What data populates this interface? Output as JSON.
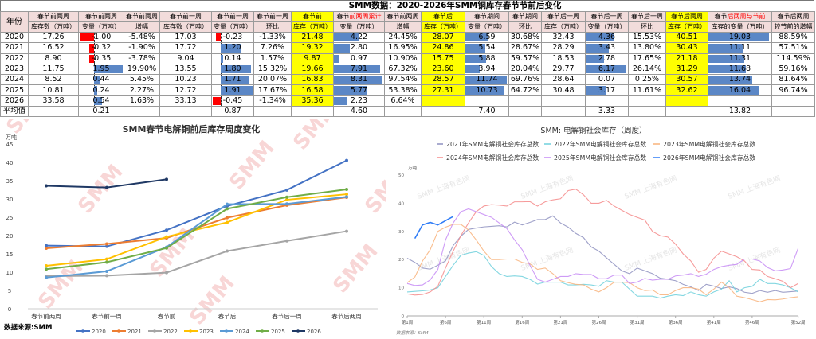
{
  "title": "SMM数据：2020-2026年SMM铜库存春节节前后变化",
  "table": {
    "year_header": "年份",
    "headers_top": [
      {
        "a": "春节前两周"
      },
      {
        "a": "春节前两周"
      },
      {
        "a": "春节前两周"
      },
      {
        "a": "春节前一周"
      },
      {
        "a": "春节前一周"
      },
      {
        "a": "春节前一周"
      },
      {
        "a": "春节前"
      },
      {
        "a": "春节",
        "b": "前两周累计"
      },
      {
        "a": "春节前两周"
      },
      {
        "a": "春节后"
      },
      {
        "a": "春节期间"
      },
      {
        "a": "春节期间"
      },
      {
        "a": "春节后一周"
      },
      {
        "a": "春节后一周"
      },
      {
        "a": "春节后一周"
      },
      {
        "a": "春节后两周"
      },
      {
        "a": "春节",
        "b": "后两周与节前"
      },
      {
        "a": "春节后两周"
      }
    ],
    "headers_bottom": [
      "库存数（万吨）",
      "变量（万吨）",
      "增幅",
      "库存数（万吨）",
      "变量（万吨）",
      "环比",
      "库存（万吨）",
      "变量（万吨）",
      "增幅",
      "库存（万吨）",
      "变量（万吨）",
      "环比",
      "库存（万吨）",
      "变量（万吨）",
      "环比",
      "库存（万吨）",
      "库存的变量（万吨）",
      "较节前的增幅"
    ],
    "rows": [
      [
        "2020",
        "17.26",
        "-1.00",
        "-5.48%",
        "17.03",
        "-0.23",
        "-1.33%",
        "21.48",
        "4.22",
        "24.45%",
        "28.07",
        "6.59",
        "30.68%",
        "32.43",
        "4.36",
        "15.53%",
        "40.51",
        "19.03",
        "88.59%"
      ],
      [
        "2021",
        "16.52",
        "-0.32",
        "-1.90%",
        "17.72",
        "1.20",
        "7.26%",
        "19.32",
        "2.80",
        "16.95%",
        "24.86",
        "5.54",
        "28.67%",
        "28.29",
        "3.43",
        "13.80%",
        "30.43",
        "11.11",
        "57.51%"
      ],
      [
        "2022",
        "8.90",
        "-0.35",
        "-3.78%",
        "9.04",
        "0.14",
        "1.57%",
        "9.87",
        "0.97",
        "10.90%",
        "15.75",
        "5.88",
        "59.57%",
        "18.53",
        "2.78",
        "17.65%",
        "21.18",
        "11.31",
        "114.59%"
      ],
      [
        "2023",
        "11.75",
        "1.95",
        "19.90%",
        "13.55",
        "1.80",
        "15.32%",
        "19.66",
        "7.91",
        "67.32%",
        "23.60",
        "3.94",
        "20.04%",
        "29.77",
        "6.17",
        "26.14%",
        "31.29",
        "11.68",
        "59.16%"
      ],
      [
        "2024",
        "8.52",
        "0.44",
        "5.45%",
        "10.23",
        "1.71",
        "20.07%",
        "16.83",
        "8.31",
        "97.54%",
        "28.57",
        "11.74",
        "69.76%",
        "28.64",
        "0.07",
        "0.25%",
        "30.57",
        "13.74",
        "81.64%"
      ],
      [
        "2025",
        "10.81",
        "0.24",
        "2.27%",
        "12.72",
        "1.91",
        "17.67%",
        "16.58",
        "5.77",
        "53.38%",
        "27.31",
        "10.73",
        "64.72%",
        "30.48",
        "3.17",
        "11.61%",
        "32.62",
        "16.04",
        "96.74%"
      ],
      [
        "2026",
        "33.58",
        "0.54",
        "1.63%",
        "33.13",
        "-0.45",
        "-1.34%",
        "35.36",
        "2.23",
        "6.64%",
        "",
        "",
        "",
        "",
        "",
        "",
        "",
        "",
        ""
      ]
    ],
    "avg_row": [
      "平均值",
      "",
      "0.21",
      "",
      "",
      "0.87",
      "",
      "",
      "4.60",
      "",
      "",
      "7.40",
      "",
      "",
      "3.33",
      "",
      "",
      "13.82",
      ""
    ],
    "colors": {
      "header_bg": "#f2dcdb",
      "highlight": "#ffff00",
      "bar_pos": "#5b87c6",
      "bar_neg": "#ff0000"
    }
  },
  "source_left": "数据来源:SMM",
  "source_right": "数据来源：SMM",
  "watermark_left": "SMM",
  "watermark_right": "SMM 上海有色网",
  "chart_data": [
    {
      "type": "line",
      "title": "SMM春节电解铜前后库存周度变化",
      "ylabel": "万吨",
      "ylim": [
        0,
        45
      ],
      "yticks": [
        0,
        5,
        10,
        15,
        20,
        25,
        30,
        35,
        40,
        45
      ],
      "categories": [
        "春节前两周",
        "春节前一周",
        "春节前",
        "春节后",
        "春节后一周",
        "春节后两周"
      ],
      "legend": "bottom",
      "series": [
        {
          "name": "2020",
          "color": "#4472c4",
          "values": [
            17.26,
            17.03,
            21.48,
            28.07,
            32.43,
            40.51
          ]
        },
        {
          "name": "2021",
          "color": "#ed7d31",
          "values": [
            16.52,
            17.72,
            19.32,
            24.86,
            28.29,
            30.43
          ]
        },
        {
          "name": "2022",
          "color": "#a5a5a5",
          "values": [
            8.9,
            9.04,
            9.87,
            15.75,
            18.53,
            21.18
          ]
        },
        {
          "name": "2023",
          "color": "#ffc000",
          "values": [
            11.75,
            13.55,
            19.66,
            23.6,
            29.77,
            31.29
          ]
        },
        {
          "name": "2024",
          "color": "#5b9bd5",
          "values": [
            8.52,
            10.23,
            16.83,
            28.57,
            28.64,
            30.57
          ]
        },
        {
          "name": "2025",
          "color": "#70ad47",
          "values": [
            10.81,
            12.72,
            16.58,
            27.31,
            30.48,
            32.62
          ]
        },
        {
          "name": "2026",
          "color": "#1f3864",
          "values": [
            33.58,
            33.13,
            35.36,
            null,
            null,
            null
          ]
        }
      ]
    },
    {
      "type": "line",
      "title": "SMM: 电解铜社会库存（周度）",
      "ylabel": "万吨",
      "ylim": [
        0,
        50
      ],
      "yticks": [
        0,
        10,
        20,
        30,
        40,
        50
      ],
      "x_range": [
        1,
        52
      ],
      "xticks": [
        "第1周",
        "第6周",
        "第11周",
        "第16周",
        "第21周",
        "第26周",
        "第31周",
        "第36周",
        "第41周",
        "第46周",
        "第52周"
      ],
      "xtick_weeks": [
        1,
        6,
        11,
        16,
        21,
        26,
        31,
        36,
        41,
        46,
        52
      ],
      "legend": "top",
      "series": [
        {
          "name": "2021年SMM电解铜社会库存总数",
          "color": "#8e90c0",
          "values": [
            20.5,
            19,
            17,
            16.6,
            18,
            19.5,
            25,
            28.3,
            30.7,
            31.2,
            31.6,
            31.8,
            32,
            31.6,
            33.3,
            32.3,
            33.2,
            34.2,
            34.2,
            35.5,
            33,
            31.5,
            29.3,
            27.8,
            24.5,
            23,
            20.6,
            18.3,
            16,
            15,
            17,
            16,
            15,
            13.4,
            13,
            12.5,
            11.2,
            10.3,
            9,
            11.2,
            10.6,
            9.7,
            10.3,
            9.7,
            8.4,
            8,
            9,
            8.4,
            9,
            8.4,
            8.6,
            8.8
          ]
        },
        {
          "name": "2022年SMM电解铜社会库存总数",
          "color": "#6fd0dc",
          "values": [
            8.5,
            8.7,
            8.9,
            9.2,
            10,
            14,
            18,
            21.5,
            22.3,
            22.8,
            21.5,
            17.5,
            15,
            14,
            14.2,
            14,
            13,
            11.3,
            12,
            12,
            12,
            11,
            11,
            11.2,
            11,
            10.5,
            12.5,
            12,
            12,
            9.5,
            7,
            7,
            7,
            6.3,
            7,
            7.5,
            7.2,
            8.5,
            7.5,
            7,
            8.5,
            9.5,
            12.5,
            8.5,
            10,
            10.5,
            13,
            11.5,
            11.5,
            11,
            10,
            8.5
          ]
        },
        {
          "name": "2023年SMM电解铜社会库存总数",
          "color": "#f8b27a",
          "values": [
            11.8,
            13.8,
            19.5,
            23.5,
            30,
            31.5,
            32.5,
            32.5,
            30.5,
            27,
            23,
            20,
            20,
            20.2,
            20.2,
            19,
            18.5,
            16.5,
            17,
            15,
            12.5,
            11.8,
            11.2,
            11,
            9.5,
            8.5,
            10,
            12,
            12,
            11.8,
            10,
            9,
            9.2,
            7.5,
            7.5,
            9,
            10,
            10,
            9.5,
            7.5,
            9.5,
            12,
            10,
            7,
            6.5,
            5.8,
            5,
            5.8,
            5.7,
            6,
            6.5,
            6.8
          ]
        },
        {
          "name": "2024年SMM电解铜社会库存总数",
          "color": "#f58a8a",
          "values": [
            7.8,
            7.4,
            7.6,
            8.5,
            10.5,
            17,
            23,
            28.5,
            33,
            37,
            39,
            39.5,
            39.3,
            39,
            40.5,
            40.5,
            40.6,
            39,
            40.5,
            41.2,
            41.6,
            44.5,
            45,
            43,
            40,
            40,
            41,
            39,
            37.5,
            36,
            35,
            34,
            30,
            28.5,
            28,
            25.5,
            22,
            19.5,
            15.5,
            16.5,
            20.5,
            23,
            22,
            21,
            19.5,
            16.5,
            16.3,
            14,
            13.2,
            12.3,
            10,
            11.5
          ]
        },
        {
          "name": "2025年SMM电解铜社会库存总数",
          "color": "#c58af5",
          "values": [
            11.5,
            10.8,
            11,
            12.8,
            16.5,
            27,
            33,
            37,
            38,
            37,
            36,
            35,
            33,
            31,
            27,
            23.5,
            18,
            13,
            12,
            13,
            14,
            14,
            15,
            14.7,
            14.7,
            13.2,
            13.2,
            14.5,
            14.5,
            11.5,
            12,
            13.3,
            12.7,
            13,
            13,
            14.2,
            14.5,
            15,
            14,
            14.8,
            16.5,
            17.5,
            18,
            18.3,
            20.2,
            20.2,
            19.5,
            17.2,
            16,
            16.3,
            16.8,
            24
          ]
        },
        {
          "name": "2026年SMM电解铜社会库存总数",
          "color": "#2f7cf6",
          "values": [
            null,
            27.5,
            32.3,
            33.2,
            32.3,
            33.8,
            35.3
          ]
        }
      ]
    }
  ]
}
